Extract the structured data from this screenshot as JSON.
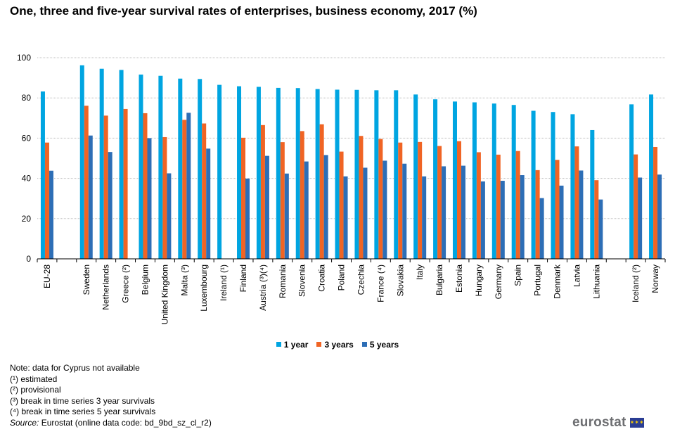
{
  "chart_data": {
    "type": "bar",
    "title": "One, three and five-year survival rates of enterprises, business economy, 2017 (%)",
    "xlabel": "",
    "ylabel": "",
    "ylim": [
      0,
      100
    ],
    "yticks": [
      0,
      20,
      40,
      60,
      80,
      100
    ],
    "grid": true,
    "legend_position": "bottom",
    "categories": [
      "EU-28",
      "",
      "Sweden",
      "Netherlands",
      "Greece (²)",
      "Belgium",
      "United Kingdom",
      "Malta (³)",
      "Luxembourg",
      "Ireland (¹)",
      "Finland",
      "Austria (³)(⁴)",
      "Romania",
      "Slovenia",
      "Croatia",
      "Poland",
      "Czechia",
      "France (⁴)",
      "Slovakia",
      "Italy",
      "Bulgaria",
      "Estonia",
      "Hungary",
      "Germany",
      "Spain",
      "Portugal",
      "Denmark",
      "Latvia",
      "Lithuania",
      "",
      "Iceland (²)",
      "Norway"
    ],
    "series": [
      {
        "name": "1 year",
        "color": "#00a5e1",
        "values": [
          83.2,
          null,
          96.2,
          94.5,
          93.9,
          91.6,
          91.0,
          89.6,
          89.4,
          86.5,
          85.8,
          85.5,
          85.0,
          84.9,
          84.4,
          84.1,
          84.0,
          83.8,
          83.8,
          81.7,
          79.3,
          78.2,
          77.8,
          77.2,
          76.5,
          73.6,
          73.0,
          71.9,
          64.0,
          null,
          76.8,
          81.7
        ]
      },
      {
        "name": "3 years",
        "color": "#f06424",
        "values": [
          57.8,
          null,
          76.1,
          71.2,
          74.5,
          72.4,
          60.5,
          69.1,
          67.3,
          null,
          60.2,
          66.5,
          58.0,
          63.5,
          66.9,
          53.3,
          61.1,
          59.6,
          57.8,
          58.1,
          56.1,
          58.5,
          53.0,
          51.8,
          53.6,
          44.1,
          49.2,
          55.9,
          39.1,
          null,
          51.9,
          55.6
        ]
      },
      {
        "name": "5 years",
        "color": "#2d6eb6",
        "values": [
          43.8,
          null,
          61.3,
          53.1,
          null,
          60.0,
          42.5,
          72.6,
          54.8,
          null,
          39.9,
          51.2,
          42.4,
          48.4,
          51.6,
          41.0,
          45.3,
          48.8,
          47.3,
          41.0,
          46.0,
          46.3,
          38.5,
          38.8,
          41.6,
          30.2,
          36.4,
          43.9,
          29.5,
          null,
          40.4,
          41.9
        ]
      }
    ]
  },
  "notes": {
    "line1": "Note: data for Cyprus  not available",
    "line2": "(¹) estimated",
    "line3": "(²) provisional",
    "line4": "(³)  break in time series 3 year survivals",
    "line5": "(⁴) break in time series 5 year survivals",
    "source_label": "Source:",
    "source_text": " Eurostat (online data code: bd_9bd_sz_cl_r2)"
  },
  "logo": {
    "text": "eurostat",
    "icon": "eu-flag-icon"
  }
}
